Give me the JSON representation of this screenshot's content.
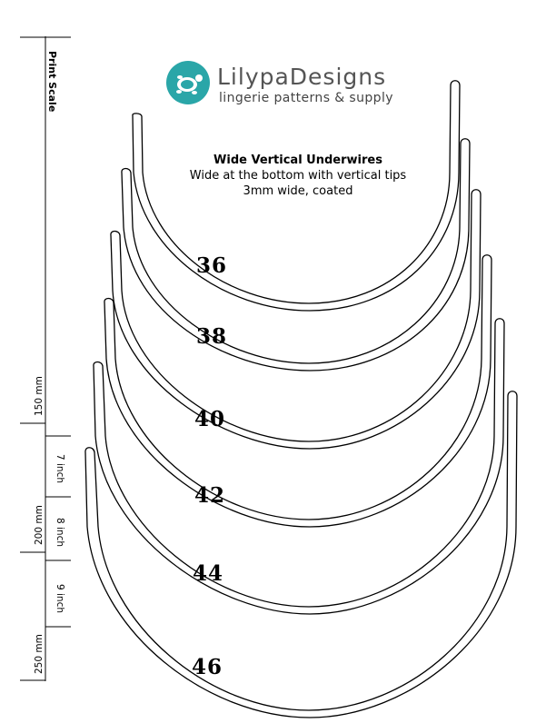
{
  "print_scale": {
    "title": "Print Scale",
    "mm_labels": [
      "150 mm",
      "200 mm",
      "250 mm"
    ],
    "inch_labels": [
      "7 inch",
      "8 inch",
      "9 inch"
    ]
  },
  "logo": {
    "name": "LilypaDesigns",
    "tagline": "lingerie patterns & supply",
    "brand_color": "#2aa6a8"
  },
  "description": {
    "title": "Wide Vertical Underwires",
    "line1": "Wide at the bottom with vertical tips",
    "line2": "3mm wide, coated"
  },
  "underwires": {
    "sizes": [
      "36",
      "38",
      "40",
      "42",
      "44",
      "46"
    ]
  }
}
